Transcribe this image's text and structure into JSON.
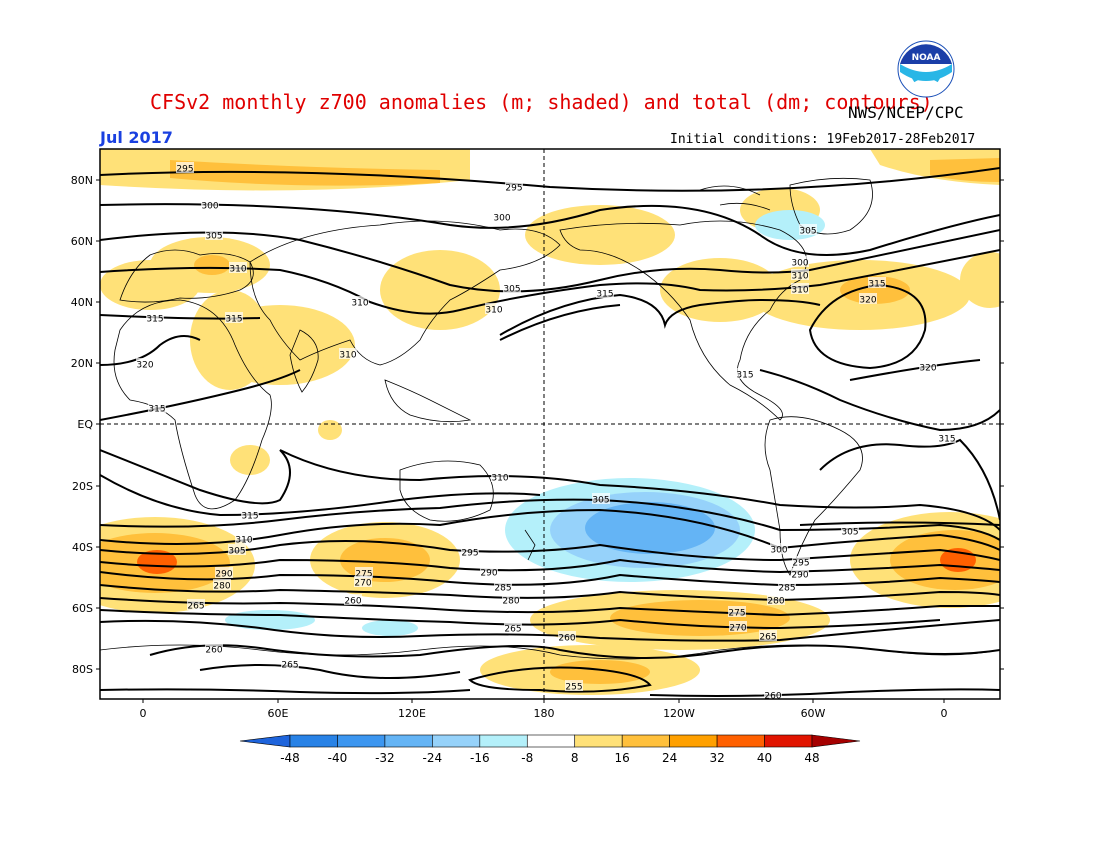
{
  "header": {
    "title": "CFSv2 monthly z700 anomalies (m; shaded) and total (dm; contours)",
    "credit": "NWS/NCEP/CPC",
    "month": "Jul 2017",
    "initial_conditions": "Initial conditions: 19Feb2017-28Feb2017",
    "logo_text": "NOAA"
  },
  "axes": {
    "lat_labels": [
      "80N",
      "60N",
      "40N",
      "20N",
      "EQ",
      "20S",
      "40S",
      "60S",
      "80S"
    ],
    "lon_labels": [
      "0",
      "60E",
      "120E",
      "180",
      "120W",
      "60W",
      "0"
    ]
  },
  "colorbar": {
    "labels": [
      "-48",
      "-40",
      "-32",
      "-24",
      "-16",
      "-8",
      "8",
      "16",
      "24",
      "32",
      "40",
      "48"
    ],
    "colors": [
      "#1e64dc",
      "#2882e6",
      "#3c96f0",
      "#64b4f5",
      "#96d2fa",
      "#b4f0fa",
      "#ffffff",
      "#ffe178",
      "#ffc03c",
      "#ffa000",
      "#ff6000",
      "#e11400",
      "#a50000"
    ]
  },
  "contour_labels": [
    "295",
    "295",
    "300",
    "300",
    "305",
    "310",
    "305",
    "310",
    "315",
    "310",
    "310",
    "315",
    "320",
    "310",
    "300",
    "305",
    "310",
    "315",
    "320",
    "320",
    "315",
    "315",
    "315",
    "315",
    "310",
    "305",
    "300",
    "295",
    "290",
    "285",
    "280",
    "315",
    "310",
    "305",
    "290",
    "280",
    "265",
    "305",
    "295",
    "290",
    "285",
    "280",
    "275",
    "270",
    "265",
    "260",
    "255",
    "275",
    "270",
    "260",
    "265",
    "265",
    "260",
    "260"
  ]
}
